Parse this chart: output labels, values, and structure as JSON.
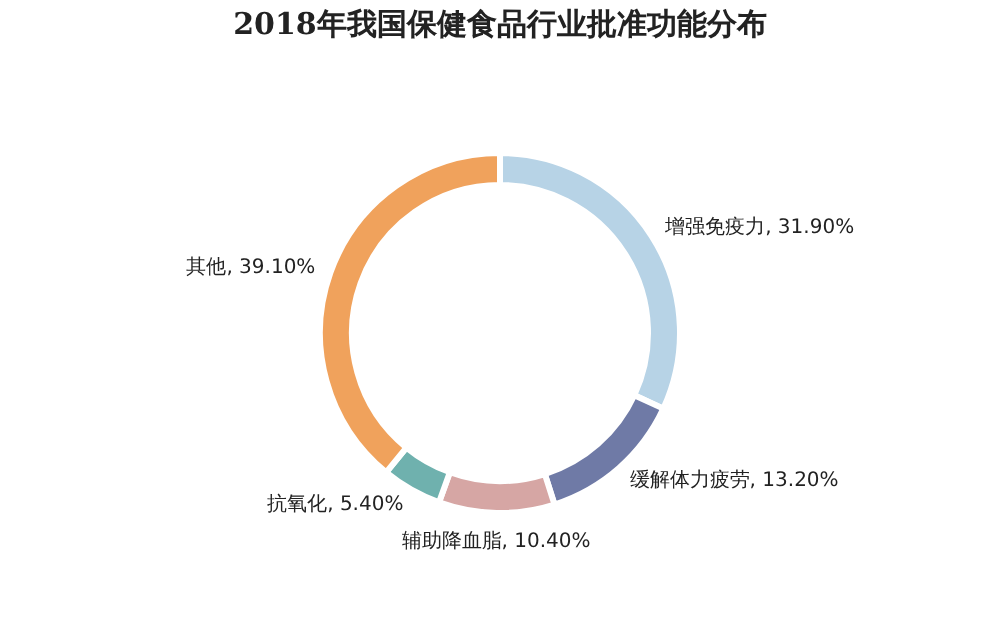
{
  "chart_data": {
    "type": "donut",
    "title": "2018年我国保健食品行业批准功能分布",
    "categories": [
      "增强免疫力",
      "缓解体力疲劳",
      "辅助降血脂",
      "抗氧化",
      "其他"
    ],
    "values": [
      31.9,
      13.2,
      10.4,
      5.4,
      39.1
    ],
    "value_labels": [
      "31.90%",
      "13.20%",
      "10.40%",
      "5.40%",
      "39.10%"
    ],
    "colors": [
      "#b7d3e6",
      "#6f7aa6",
      "#d6a6a4",
      "#6fb1ae",
      "#f0a25c"
    ],
    "legend": false
  }
}
